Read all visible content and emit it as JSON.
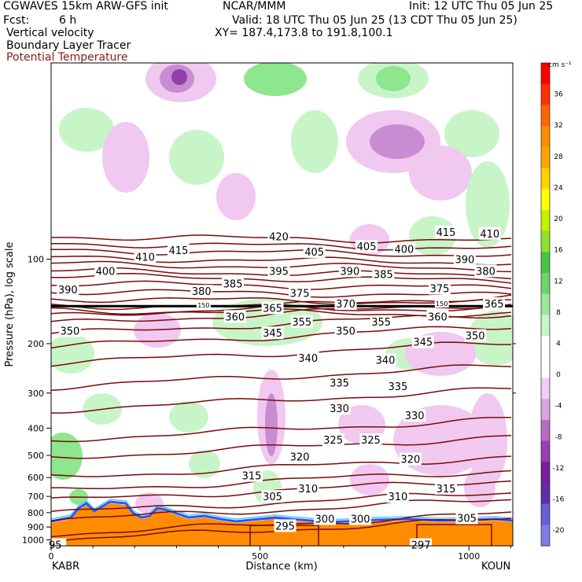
{
  "header": {
    "model": "CGWAVES 15km ARW-GFS init",
    "center": "NCAR/MMM",
    "init": "Init: 12 UTC Thu 05 Jun 25",
    "fcst_label": "Fcst:",
    "fcst_value": "6 h",
    "valid": "Valid: 18 UTC Thu 05 Jun 25 (13 CDT Thu 05 Jun 25)",
    "field1": "Vertical velocity",
    "field2": "Boundary Layer Tracer",
    "field3": "Potential Temperature",
    "xy": "XY= 187.4,173.8 to 191.8,100.1"
  },
  "colors": {
    "theta_line": "#7a0a0a",
    "tracer_fill": "#ff8c00",
    "green_light": "#c8f5c8",
    "green_mid": "#8ee68e",
    "purple_light": "#f0c8f0",
    "purple_mid": "#c88cd2",
    "purple_dark": "#9040a8"
  },
  "chart_data": {
    "type": "cross-section",
    "xlabel": "Distance (km)",
    "ylabel": "Pressure (hPa), log scale",
    "xlim": [
      0,
      1105
    ],
    "ylim": [
      1050,
      20
    ],
    "y_scale": "log",
    "x_ticks": [
      0,
      500,
      1000
    ],
    "y_ticks": [
      100,
      200,
      300,
      400,
      500,
      600,
      700,
      800,
      900,
      1000
    ],
    "left_endpoint": "KABR",
    "right_endpoint": "KOUN",
    "colorbar": {
      "unit": "cm s⁻¹",
      "levels": [
        -20,
        -16,
        -12,
        -8,
        -4,
        0,
        4,
        8,
        12,
        16,
        20,
        24,
        28,
        32,
        36
      ],
      "colors": [
        "#7e7ee6",
        "#6b5cd6",
        "#5f2fa8",
        "#7a1f9a",
        "#9a3fae",
        "#b76cc4",
        "#d9a6dd",
        "#f2cef2",
        "#ffffff",
        "#ffffff",
        "#c8f5c8",
        "#9be89b",
        "#6ed46e",
        "#46c446",
        "#8fe02a",
        "#c8f000",
        "#ffff00",
        "#ffd200",
        "#ffa500",
        "#ff8c00",
        "#ff6400",
        "#ff3200",
        "#ff0000"
      ]
    },
    "theta_contours": [
      {
        "value": 295,
        "p": 955
      },
      {
        "value": 297,
        "p": 1000
      },
      {
        "value": 300,
        "p": 850
      },
      {
        "value": 305,
        "p": 800
      },
      {
        "value": 305,
        "p": 725
      },
      {
        "value": 310,
        "p": 670
      },
      {
        "value": 315,
        "p": 600
      },
      {
        "value": 320,
        "p": 510
      },
      {
        "value": 325,
        "p": 440
      },
      {
        "value": 330,
        "p": 345
      },
      {
        "value": 335,
        "p": 285
      },
      {
        "value": 340,
        "p": 235
      },
      {
        "value": 345,
        "p": 205
      },
      {
        "value": 350,
        "p": 185
      },
      {
        "value": 355,
        "p": 170
      },
      {
        "value": 360,
        "p": 160
      },
      {
        "value": 365,
        "p": 152
      },
      {
        "value": 370,
        "p": 146
      },
      {
        "value": 375,
        "p": 138
      },
      {
        "value": 380,
        "p": 130
      },
      {
        "value": 385,
        "p": 122
      },
      {
        "value": 390,
        "p": 115
      },
      {
        "value": 395,
        "p": 110
      },
      {
        "value": 400,
        "p": 104
      },
      {
        "value": 405,
        "p": 99
      },
      {
        "value": 410,
        "p": 93
      },
      {
        "value": 415,
        "p": 88
      },
      {
        "value": 420,
        "p": 83
      }
    ],
    "theta_labels": [
      {
        "text": "420",
        "x": 545,
        "p": 83
      },
      {
        "text": "415",
        "x": 945,
        "p": 80
      },
      {
        "text": "410",
        "x": 1050,
        "p": 81
      },
      {
        "text": "415",
        "x": 305,
        "p": 93
      },
      {
        "text": "410",
        "x": 225,
        "p": 98
      },
      {
        "text": "405",
        "x": 630,
        "p": 94
      },
      {
        "text": "405",
        "x": 755,
        "p": 90
      },
      {
        "text": "400",
        "x": 845,
        "p": 92
      },
      {
        "text": "400",
        "x": 130,
        "p": 110
      },
      {
        "text": "395",
        "x": 545,
        "p": 110
      },
      {
        "text": "390",
        "x": 990,
        "p": 100
      },
      {
        "text": "390",
        "x": 715,
        "p": 110
      },
      {
        "text": "385",
        "x": 795,
        "p": 113
      },
      {
        "text": "380",
        "x": 1040,
        "p": 110
      },
      {
        "text": "390",
        "x": 40,
        "p": 128
      },
      {
        "text": "380",
        "x": 360,
        "p": 130
      },
      {
        "text": "385",
        "x": 435,
        "p": 122
      },
      {
        "text": "375",
        "x": 595,
        "p": 132
      },
      {
        "text": "375",
        "x": 930,
        "p": 127
      },
      {
        "text": "370",
        "x": 705,
        "p": 144
      },
      {
        "text": "365",
        "x": 530,
        "p": 149
      },
      {
        "text": "365",
        "x": 1060,
        "p": 144
      },
      {
        "text": "360",
        "x": 440,
        "p": 160
      },
      {
        "text": "360",
        "x": 925,
        "p": 160
      },
      {
        "text": "355",
        "x": 600,
        "p": 167
      },
      {
        "text": "355",
        "x": 790,
        "p": 167
      },
      {
        "text": "350",
        "x": 45,
        "p": 180
      },
      {
        "text": "350",
        "x": 705,
        "p": 180
      },
      {
        "text": "350",
        "x": 1015,
        "p": 187
      },
      {
        "text": "345",
        "x": 530,
        "p": 183
      },
      {
        "text": "345",
        "x": 890,
        "p": 197
      },
      {
        "text": "340",
        "x": 615,
        "p": 225
      },
      {
        "text": "340",
        "x": 800,
        "p": 228
      },
      {
        "text": "335",
        "x": 690,
        "p": 275
      },
      {
        "text": "335",
        "x": 830,
        "p": 283
      },
      {
        "text": "330",
        "x": 690,
        "p": 340
      },
      {
        "text": "330",
        "x": 870,
        "p": 360
      },
      {
        "text": "325",
        "x": 675,
        "p": 440
      },
      {
        "text": "325",
        "x": 765,
        "p": 440
      },
      {
        "text": "320",
        "x": 595,
        "p": 505
      },
      {
        "text": "320",
        "x": 860,
        "p": 515
      },
      {
        "text": "315",
        "x": 480,
        "p": 590
      },
      {
        "text": "315",
        "x": 945,
        "p": 655
      },
      {
        "text": "310",
        "x": 615,
        "p": 655
      },
      {
        "text": "310",
        "x": 830,
        "p": 700
      },
      {
        "text": "305",
        "x": 530,
        "p": 700
      },
      {
        "text": "305",
        "x": 995,
        "p": 835
      },
      {
        "text": "300",
        "x": 655,
        "p": 840
      },
      {
        "text": "300",
        "x": 740,
        "p": 840
      },
      {
        "text": "295",
        "x": 560,
        "p": 890
      },
      {
        "text": "297",
        "x": 885,
        "p": 1040
      },
      {
        "text": "95",
        "x": 10,
        "p": 1040
      },
      {
        "text": "150",
        "x": 365,
        "p": 146
      },
      {
        "text": "150",
        "x": 935,
        "p": 144
      }
    ],
    "tropopause_line_p": 147
  }
}
